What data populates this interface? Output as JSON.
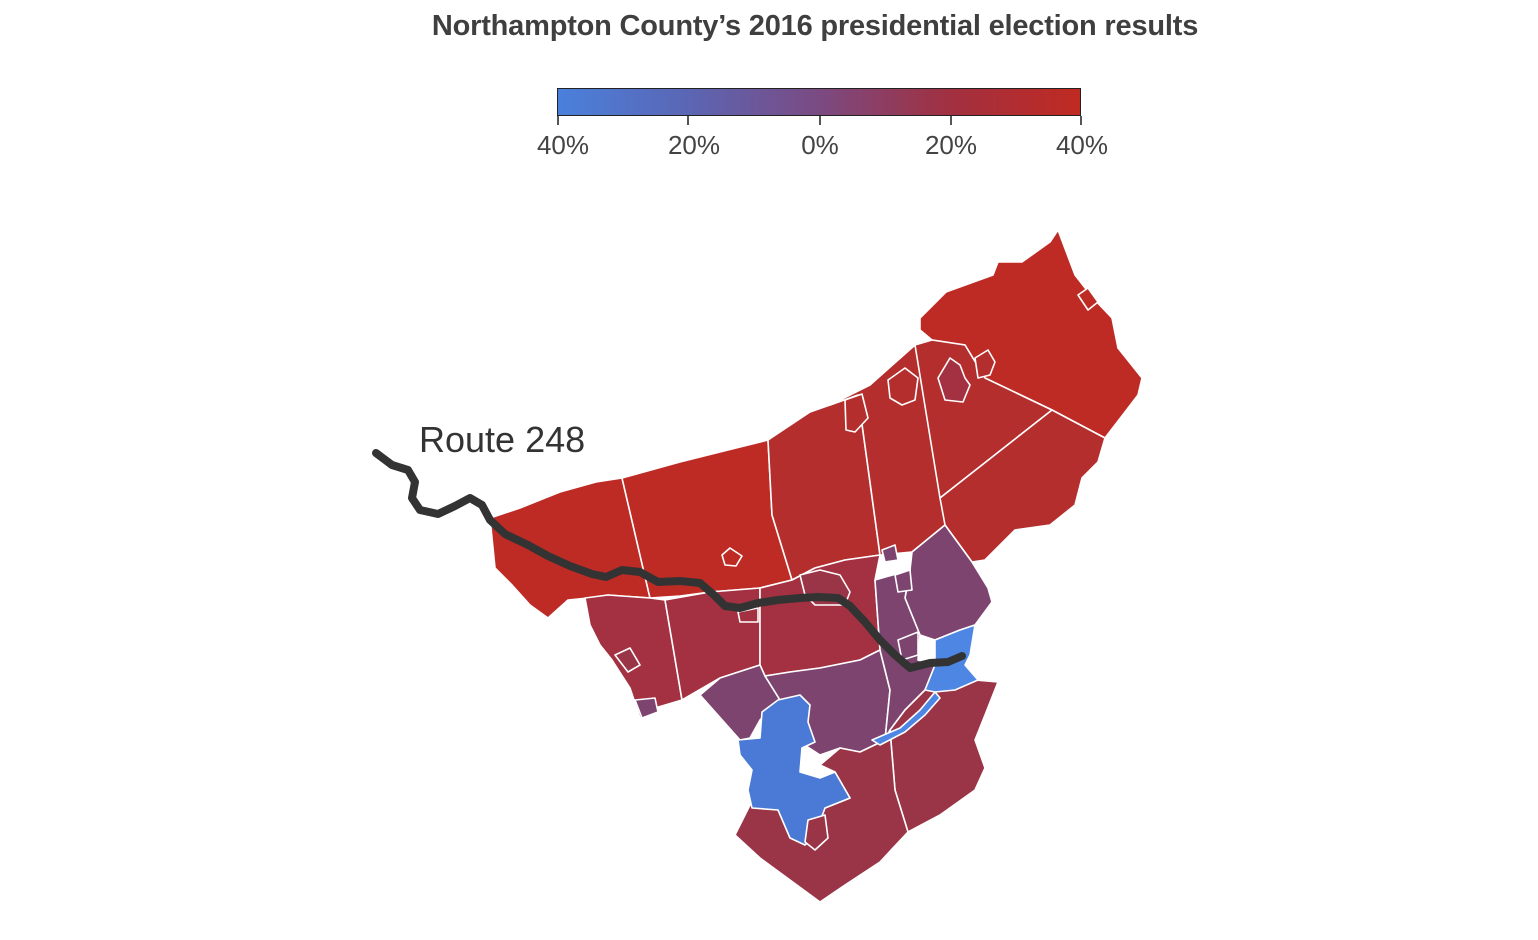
{
  "title": "Northampton County’s 2016 presidential election results",
  "legend": {
    "gradient_colors": [
      "#4a80dc",
      "#5b66b4",
      "#7b4a82",
      "#a13040",
      "#c02a22"
    ],
    "ticks": [
      {
        "label": "40%",
        "value": -40
      },
      {
        "label": "20%",
        "value": -20
      },
      {
        "label": "0%",
        "value": 0
      },
      {
        "label": "20%",
        "value": 20
      },
      {
        "label": "40%",
        "value": 40
      }
    ]
  },
  "map": {
    "annotation": "Route 248",
    "colors": {
      "strong_red": "#be2b25",
      "red": "#b52e2e",
      "dark_red": "#a33141",
      "maroon": "#9a3447",
      "purple": "#7d4470",
      "blue": "#4a7ad6",
      "bright_blue": "#4e86e3",
      "route": "#333333",
      "border": "#ffffff"
    }
  }
}
